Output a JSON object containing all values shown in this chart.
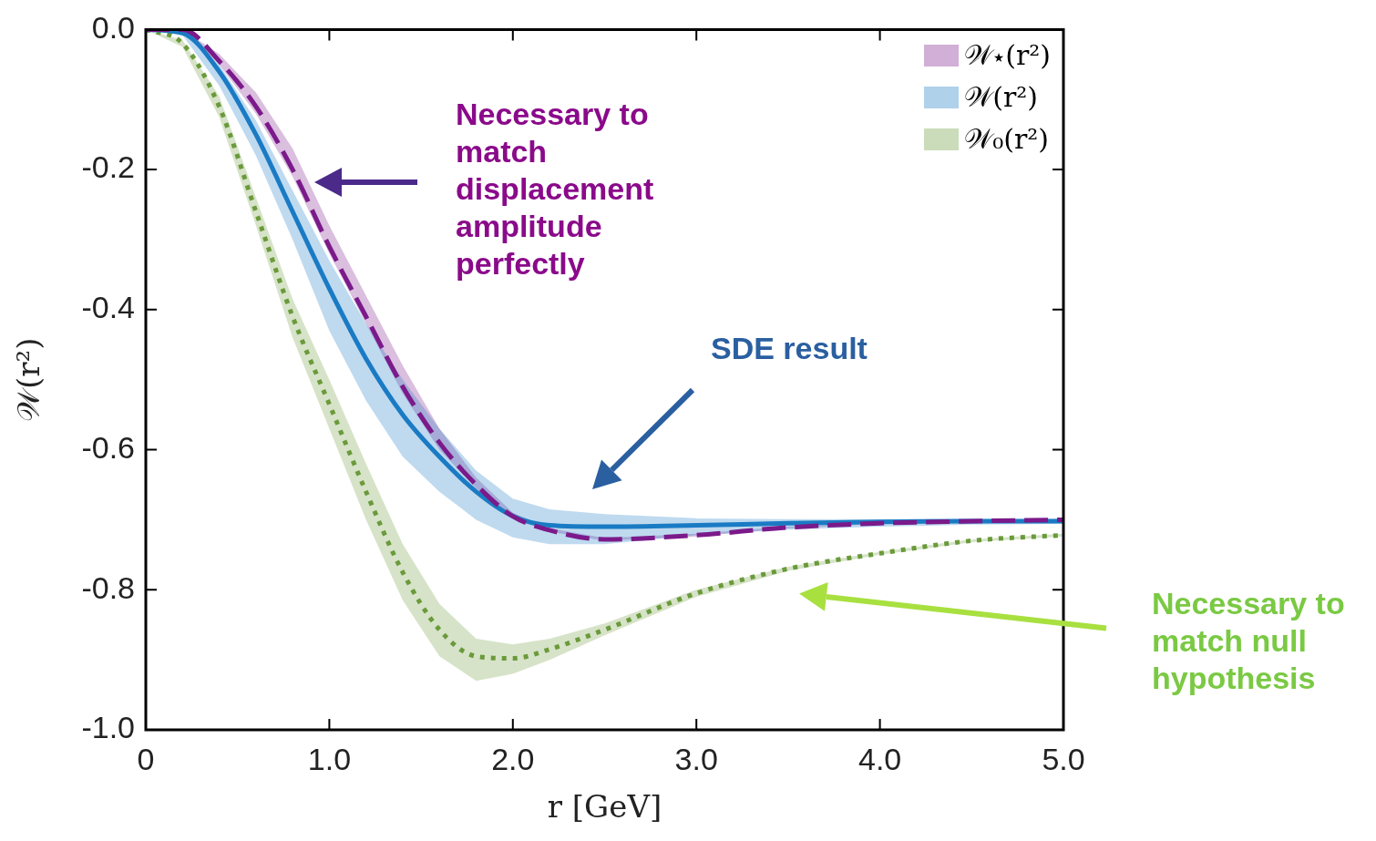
{
  "chart_data": {
    "type": "line",
    "xlabel": "r [GeV]",
    "ylabel": "𝒲(r²)",
    "xlim": [
      0,
      5
    ],
    "xticks": [
      {
        "value": 0,
        "label": "0"
      },
      {
        "value": 1,
        "label": "1.0"
      },
      {
        "value": 2,
        "label": "2.0"
      },
      {
        "value": 3,
        "label": "3.0"
      },
      {
        "value": 4,
        "label": "4.0"
      },
      {
        "value": 5,
        "label": "5.0"
      }
    ],
    "ylim": [
      -1,
      0
    ],
    "yticks": [
      {
        "value": -1,
        "label": "-1.0"
      },
      {
        "value": -0.8,
        "label": "-0.8"
      },
      {
        "value": -0.6,
        "label": "-0.6"
      },
      {
        "value": -0.4,
        "label": "-0.4"
      },
      {
        "value": -0.2,
        "label": "-0.2"
      },
      {
        "value": 0,
        "label": "0.0"
      }
    ],
    "grid": false,
    "legend": "top right",
    "marker": "none",
    "series": [
      {
        "name": "𝒲⋆(r²)",
        "color": "#7b1a8a",
        "line_style": "dashed",
        "x": [
          0,
          0.2,
          0.4,
          0.6,
          0.8,
          1.0,
          1.2,
          1.4,
          1.6,
          1.8,
          2.0,
          2.2,
          2.5,
          3.0,
          3.5,
          4.0,
          4.5,
          5.0
        ],
        "values": [
          0,
          0,
          -0.045,
          -0.11,
          -0.2,
          -0.31,
          -0.41,
          -0.51,
          -0.59,
          -0.65,
          -0.695,
          -0.715,
          -0.728,
          -0.722,
          -0.711,
          -0.705,
          -0.702,
          -0.7
        ],
        "lower": [
          0,
          -0.002,
          -0.05,
          -0.12,
          -0.21,
          -0.32,
          -0.42,
          -0.52,
          -0.6,
          -0.655,
          -0.698,
          -0.717,
          -0.73,
          -0.724,
          -0.712,
          -0.706,
          -0.703,
          -0.701
        ],
        "upper": [
          0,
          0,
          -0.035,
          -0.09,
          -0.17,
          -0.28,
          -0.38,
          -0.48,
          -0.57,
          -0.64,
          -0.69,
          -0.712,
          -0.726,
          -0.72,
          -0.71,
          -0.704,
          -0.701,
          -0.699
        ]
      },
      {
        "name": "𝒲(r²)",
        "color": "#1a7bc4",
        "line_style": "solid",
        "x": [
          0,
          0.2,
          0.4,
          0.6,
          0.8,
          1.0,
          1.2,
          1.4,
          1.6,
          1.8,
          2.0,
          2.2,
          2.5,
          3.0,
          3.5,
          4.0,
          4.5,
          5.0
        ],
        "values": [
          0,
          -0.005,
          -0.06,
          -0.15,
          -0.26,
          -0.37,
          -0.47,
          -0.55,
          -0.61,
          -0.66,
          -0.695,
          -0.708,
          -0.71,
          -0.708,
          -0.705,
          -0.703,
          -0.702,
          -0.702
        ],
        "lower": [
          0,
          -0.008,
          -0.08,
          -0.18,
          -0.3,
          -0.43,
          -0.53,
          -0.61,
          -0.66,
          -0.7,
          -0.725,
          -0.735,
          -0.735,
          -0.722,
          -0.714,
          -0.71,
          -0.707,
          -0.706
        ],
        "upper": [
          0,
          -0.003,
          -0.05,
          -0.13,
          -0.23,
          -0.33,
          -0.42,
          -0.5,
          -0.57,
          -0.63,
          -0.67,
          -0.685,
          -0.692,
          -0.698,
          -0.699,
          -0.699,
          -0.699,
          -0.699
        ]
      },
      {
        "name": "𝒲₀(r²)",
        "color": "#6a9a3a",
        "line_style": "dotted",
        "x": [
          0,
          0.2,
          0.4,
          0.6,
          0.8,
          1.0,
          1.2,
          1.4,
          1.6,
          1.8,
          2.0,
          2.2,
          2.5,
          3.0,
          3.5,
          4.0,
          4.5,
          5.0
        ],
        "values": [
          0,
          -0.02,
          -0.11,
          -0.26,
          -0.41,
          -0.535,
          -0.66,
          -0.775,
          -0.857,
          -0.895,
          -0.898,
          -0.885,
          -0.857,
          -0.805,
          -0.77,
          -0.748,
          -0.73,
          -0.722
        ],
        "lower": [
          0,
          -0.025,
          -0.125,
          -0.28,
          -0.44,
          -0.57,
          -0.7,
          -0.815,
          -0.895,
          -0.93,
          -0.92,
          -0.9,
          -0.865,
          -0.81,
          -0.773,
          -0.75,
          -0.732,
          -0.724
        ],
        "upper": [
          0,
          -0.015,
          -0.095,
          -0.24,
          -0.385,
          -0.5,
          -0.62,
          -0.735,
          -0.82,
          -0.87,
          -0.878,
          -0.87,
          -0.848,
          -0.8,
          -0.767,
          -0.746,
          -0.728,
          -0.72
        ]
      }
    ],
    "annotations": [
      "Necessary to match displacement amplitude perfectly",
      "SDE result",
      "Necessary to match null hypothesis"
    ]
  }
}
